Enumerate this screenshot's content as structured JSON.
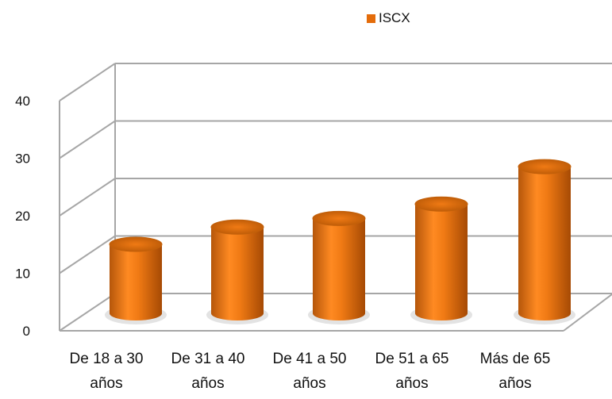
{
  "chart_data": {
    "type": "bar",
    "style": "3d-cylinder",
    "title": "",
    "xlabel": "",
    "ylabel": "",
    "categories": [
      [
        "De 18 a 30",
        "años"
      ],
      [
        "De 31 a 40",
        "años"
      ],
      [
        "De 41 a 50",
        "años"
      ],
      [
        "De 51 a 65",
        "años"
      ],
      [
        "Más de 65",
        "años"
      ]
    ],
    "series": [
      {
        "name": "ISCX",
        "values": [
          12,
          15,
          16.5,
          19,
          25.5
        ]
      }
    ],
    "ylim": [
      0,
      40
    ],
    "yticks": [
      "0",
      "10",
      "20",
      "30",
      "40"
    ],
    "grid": true,
    "legend": "top",
    "colors": {
      "bar": "#e8700f",
      "bar_dark": "#a84a05",
      "bar_light": "#ff9a3c",
      "grid": "#a6a6a6",
      "legend_swatch": "#e46c0a"
    }
  }
}
